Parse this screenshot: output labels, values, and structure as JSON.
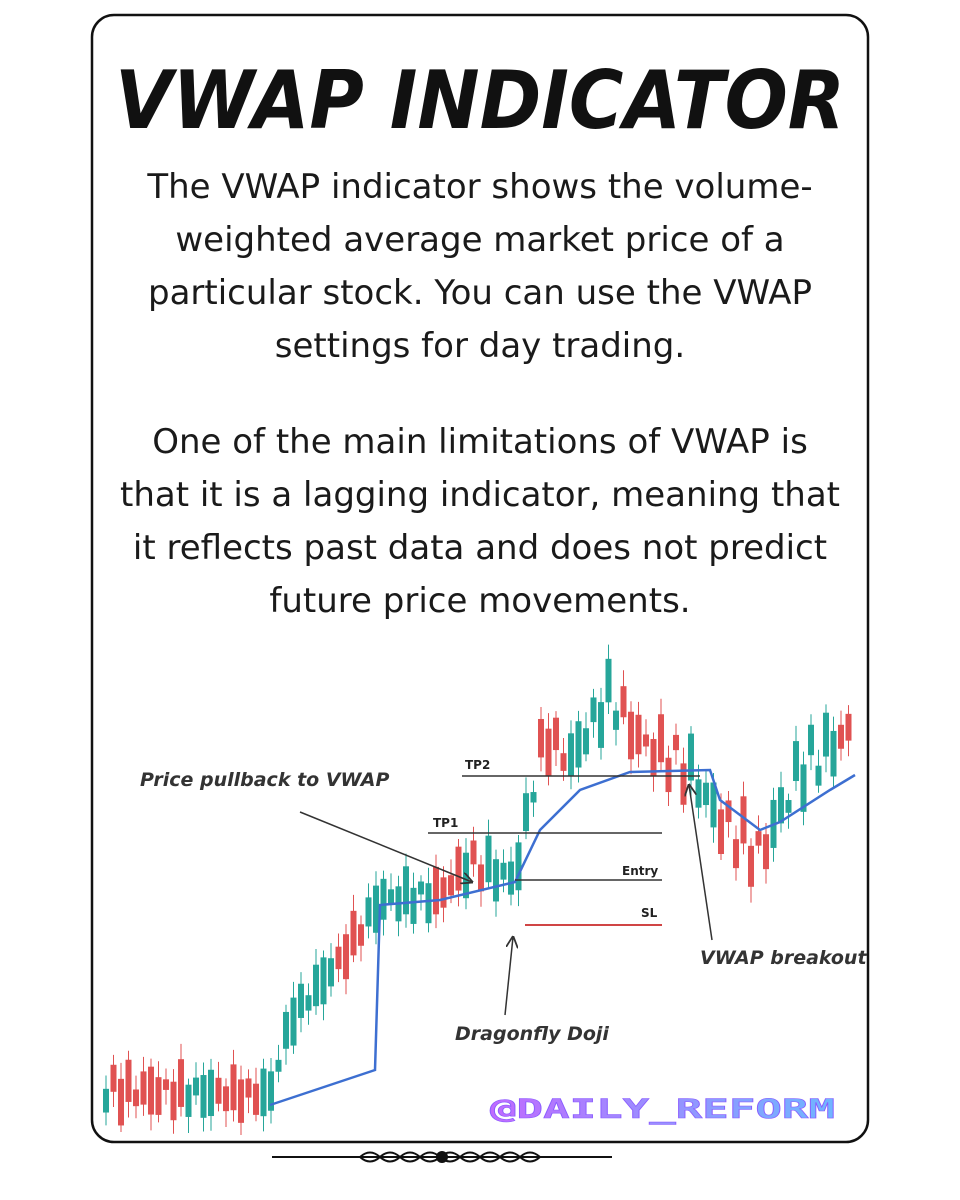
{
  "title": "VWAP INDICATOR",
  "paragraphs": [
    [
      "The VWAP indicator shows the volume-",
      "weighted average market price of a",
      "particular stock. You can use the VWAP",
      "settings for day trading."
    ],
    [
      "One of the main limitations of VWAP is",
      "that it is a lagging indicator, meaning that",
      "it reflects past data and does not predict",
      "future price movements."
    ]
  ],
  "annotations": {
    "pullback": "Price pullback to VWAP",
    "tp2": "TP2",
    "tp1": "TP1",
    "entry": "Entry",
    "sl": "SL",
    "breakout": "VWAP breakout",
    "doji": "Dragonfly Doji"
  },
  "handle": "@DAILY_REFORM"
}
